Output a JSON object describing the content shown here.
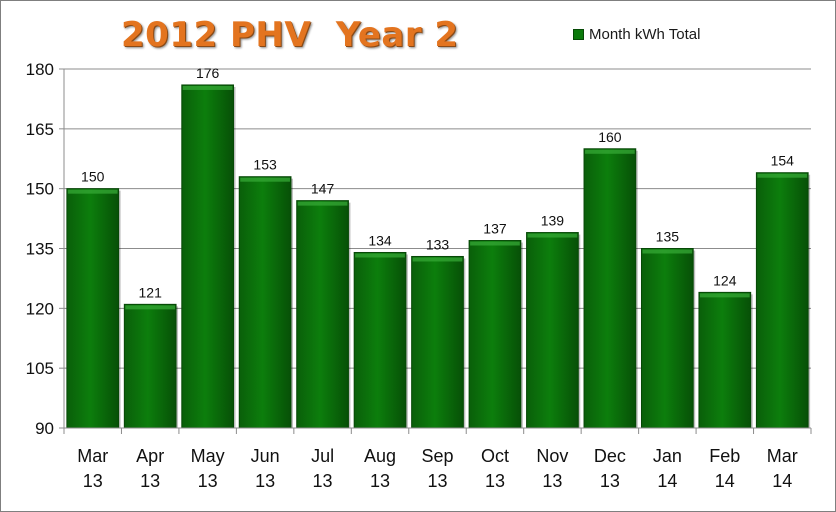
{
  "chart_data": {
    "type": "bar",
    "title": "2012 PHV  Year 2",
    "categories": [
      [
        "Mar",
        "13"
      ],
      [
        "Apr",
        "13"
      ],
      [
        "May",
        "13"
      ],
      [
        "Jun",
        "13"
      ],
      [
        "Jul",
        "13"
      ],
      [
        "Aug",
        "13"
      ],
      [
        "Sep",
        "13"
      ],
      [
        "Oct",
        "13"
      ],
      [
        "Nov",
        "13"
      ],
      [
        "Dec",
        "13"
      ],
      [
        "Jan",
        "14"
      ],
      [
        "Feb",
        "14"
      ],
      [
        "Mar",
        "14"
      ]
    ],
    "series": [
      {
        "name": "Month kWh Total",
        "values": [
          150,
          121,
          176,
          153,
          147,
          134,
          133,
          137,
          139,
          160,
          135,
          124,
          154
        ],
        "color": "#0b7a0b"
      }
    ],
    "xlabel": "",
    "ylabel": "",
    "ylim": [
      90,
      180
    ],
    "yticks": [
      90,
      105,
      120,
      135,
      150,
      165,
      180
    ],
    "grid": true,
    "legend_position": "top-right",
    "title_color": "#e3741f"
  }
}
